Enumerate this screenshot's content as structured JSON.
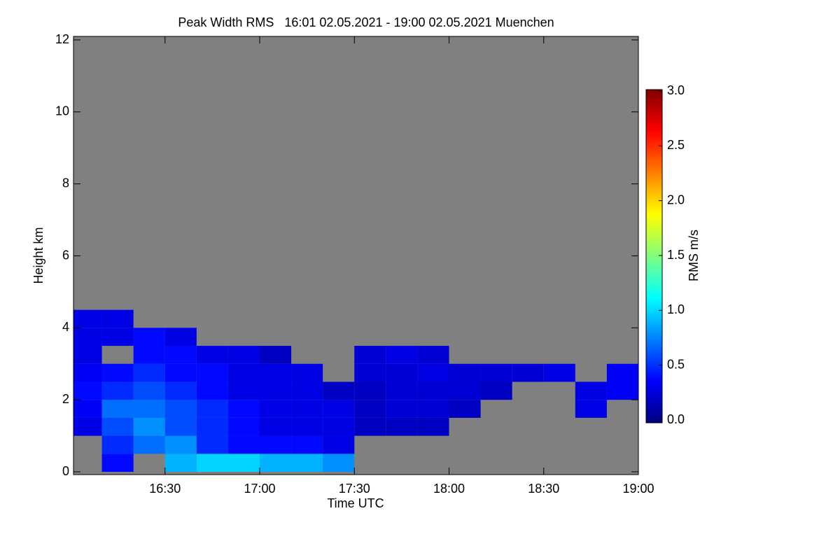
{
  "chart_data": {
    "type": "heatmap",
    "title": "Peak Width RMS   16:01 02.05.2021 - 19:00 02.05.2021 Muenchen",
    "x_label": "Time UTC",
    "y_label": "Height km",
    "colorbar_label": "RMS m/s",
    "background": "#808080",
    "xlim": [
      961,
      1140
    ],
    "xticks": [
      {
        "value": 990,
        "label": "16:30"
      },
      {
        "value": 1020,
        "label": "17:00"
      },
      {
        "value": 1050,
        "label": "17:30"
      },
      {
        "value": 1080,
        "label": "18:00"
      },
      {
        "value": 1110,
        "label": "18:30"
      },
      {
        "value": 1140,
        "label": "19:00"
      }
    ],
    "ylim": [
      0,
      12
    ],
    "yticks": [
      0,
      2,
      4,
      6,
      8,
      10,
      12
    ],
    "clim": [
      0,
      3
    ],
    "cticks": [
      {
        "value": 0,
        "label": "0.0"
      },
      {
        "value": 0.5,
        "label": "0.5"
      },
      {
        "value": 1,
        "label": "1.0"
      },
      {
        "value": 1.5,
        "label": "1.5"
      },
      {
        "value": 2,
        "label": "2.0"
      },
      {
        "value": 2.5,
        "label": "2.5"
      },
      {
        "value": 3,
        "label": "3.0"
      }
    ],
    "colormap": [
      "#00007f",
      "#0000ff",
      "#007fff",
      "#00ffff",
      "#7fff7f",
      "#ffff00",
      "#ff7f00",
      "#ff0000",
      "#7f0000"
    ],
    "x": [
      965,
      975,
      985,
      995,
      1005,
      1015,
      1025,
      1035,
      1045,
      1055,
      1065,
      1075,
      1085,
      1095,
      1105,
      1115,
      1125,
      1135
    ],
    "y": [
      0.25,
      0.75,
      1.25,
      1.75,
      2.25,
      2.75,
      3.25,
      3.75,
      4.25
    ],
    "z": [
      [
        null,
        0.4,
        null,
        0.9,
        1.0,
        1.0,
        0.9,
        0.9,
        0.8,
        null,
        null,
        null,
        null,
        null,
        null,
        null,
        null,
        null
      ],
      [
        null,
        0.5,
        0.7,
        0.8,
        0.5,
        0.4,
        0.4,
        0.4,
        0.3,
        null,
        null,
        null,
        null,
        null,
        null,
        null,
        null,
        null
      ],
      [
        0.3,
        0.6,
        0.8,
        0.6,
        0.5,
        0.4,
        0.3,
        0.3,
        0.3,
        0.2,
        0.2,
        0.2,
        null,
        null,
        null,
        null,
        null,
        null
      ],
      [
        0.35,
        0.7,
        0.7,
        0.6,
        0.5,
        0.4,
        0.3,
        0.3,
        0.3,
        0.2,
        0.25,
        0.25,
        0.2,
        null,
        null,
        null,
        0.3,
        null
      ],
      [
        0.4,
        0.5,
        0.6,
        0.5,
        0.4,
        0.3,
        0.3,
        0.3,
        0.2,
        0.2,
        0.25,
        0.25,
        0.25,
        0.2,
        null,
        null,
        0.3,
        0.35
      ],
      [
        0.35,
        0.4,
        0.5,
        0.4,
        0.4,
        0.3,
        0.3,
        0.3,
        null,
        0.25,
        0.25,
        0.3,
        0.25,
        0.25,
        0.25,
        0.3,
        null,
        0.35
      ],
      [
        0.3,
        null,
        0.4,
        0.4,
        0.3,
        0.3,
        0.2,
        null,
        null,
        0.25,
        0.3,
        0.25,
        null,
        null,
        null,
        null,
        null,
        null
      ],
      [
        0.3,
        0.3,
        0.4,
        0.3,
        null,
        null,
        null,
        null,
        null,
        null,
        null,
        null,
        null,
        null,
        null,
        null,
        null,
        null
      ],
      [
        0.3,
        0.3,
        null,
        null,
        null,
        null,
        null,
        null,
        null,
        null,
        null,
        null,
        null,
        null,
        null,
        null,
        null,
        null
      ]
    ]
  }
}
